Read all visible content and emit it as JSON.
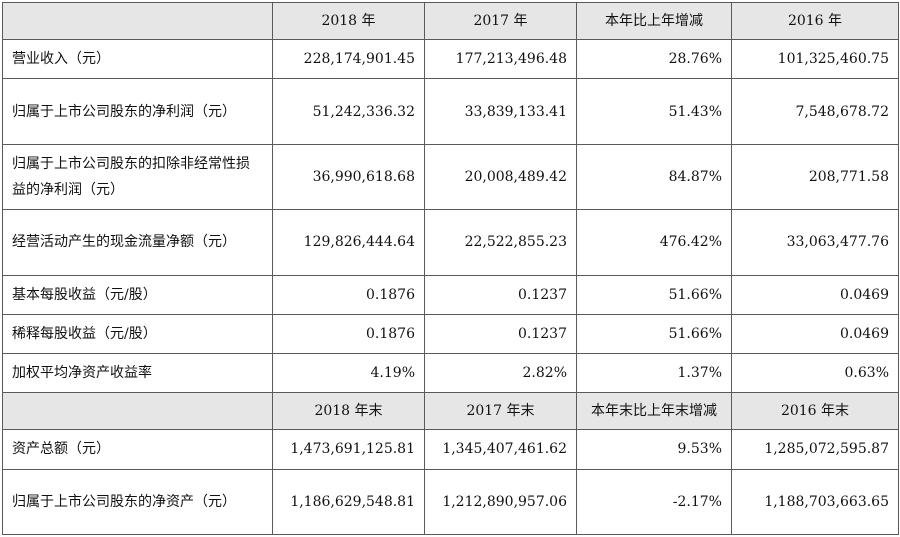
{
  "header1": [
    "",
    "2018 年",
    "2017 年",
    "本年比上年增减",
    "2016 年"
  ],
  "rows1": [
    {
      "label": "营业收入（元）",
      "values": [
        "228,174,901.45",
        "177,213,496.48",
        "28.76%",
        "101,325,460.75"
      ],
      "tall": false
    },
    {
      "label": "归属于上市公司股东的净利润（元）",
      "values": [
        "51,242,336.32",
        "33,839,133.41",
        "51.43%",
        "7,548,678.72"
      ],
      "tall": true
    },
    {
      "label": "归属于上市公司股东的扣除非经常性损益的净利润（元）",
      "values": [
        "36,990,618.68",
        "20,008,489.42",
        "84.87%",
        "208,771.58"
      ],
      "tall": true
    },
    {
      "label": "经营活动产生的现金流量净额（元）",
      "values": [
        "129,826,444.64",
        "22,522,855.23",
        "476.42%",
        "33,063,477.76"
      ],
      "tall": true
    },
    {
      "label": "基本每股收益（元/股）",
      "values": [
        "0.1876",
        "0.1237",
        "51.66%",
        "0.0469"
      ],
      "tall": false
    },
    {
      "label": "稀释每股收益（元/股）",
      "values": [
        "0.1876",
        "0.1237",
        "51.66%",
        "0.0469"
      ],
      "tall": false
    },
    {
      "label": "加权平均净资产收益率",
      "values": [
        "4.19%",
        "2.82%",
        "1.37%",
        "0.63%"
      ],
      "tall": false
    }
  ],
  "header2": [
    "",
    "2018 年末",
    "2017 年末",
    "本年末比上年末增减",
    "2016 年末"
  ],
  "rows2": [
    {
      "label": "资产总额（元）",
      "values": [
        "1,473,691,125.81",
        "1,345,407,461.62",
        "9.53%",
        "1,285,072,595.87"
      ],
      "tall": false
    },
    {
      "label": "归属于上市公司股东的净资产（元）",
      "values": [
        "1,186,629,548.81",
        "1,212,890,957.06",
        "-2.17%",
        "1,188,703,663.65"
      ],
      "tall": true
    }
  ]
}
